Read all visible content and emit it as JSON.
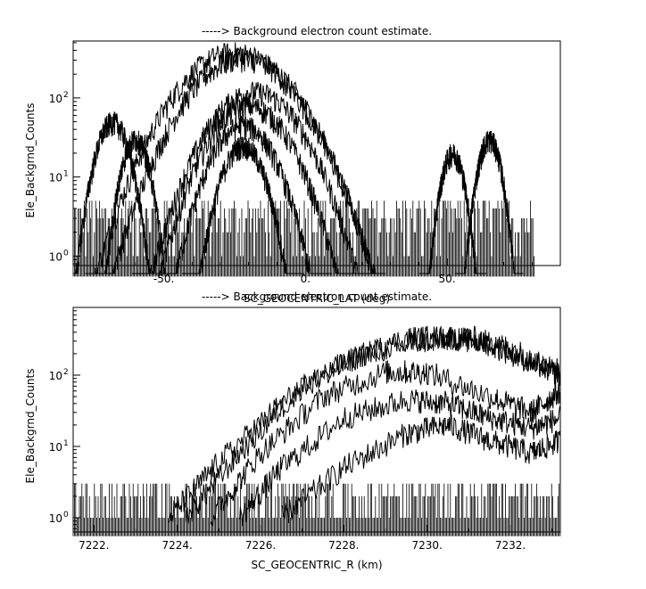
{
  "chart_data": [
    {
      "type": "line",
      "title": "-----> Background electron count estimate.",
      "xlabel": "SC_GEOCENTRIC_LAT (deg)",
      "ylabel": "Ele_Backgrnd_Counts",
      "xlim": [
        -82,
        90
      ],
      "ylim_log10": [
        -0.12,
        2.72
      ],
      "x_scale": "linear",
      "y_scale": "log",
      "x_tick_labels": [
        {
          "value": -50,
          "label": "-50."
        },
        {
          "value": 0,
          "label": "0."
        },
        {
          "value": 50,
          "label": "50."
        }
      ],
      "x_minor_ticks": [
        -80,
        -70,
        -60,
        -40,
        -30,
        -20,
        -10,
        10,
        20,
        30,
        40,
        60,
        70,
        80
      ],
      "y_tick_labels": [
        {
          "value": 1,
          "label": "10",
          "exp": "0"
        },
        {
          "value": 10,
          "label": "10",
          "exp": "1"
        },
        {
          "value": 100,
          "label": "10",
          "exp": "2"
        }
      ],
      "noise_floor": {
        "x_min": -82,
        "x_max": 81,
        "values": [
          1,
          2,
          3,
          4,
          5
        ]
      },
      "series": [
        {
          "peak_x": -25,
          "peak_y": 380,
          "width": 22
        },
        {
          "peak_x": -22,
          "peak_y": 320,
          "width": 21
        },
        {
          "peak_x": -18,
          "peak_y": 120,
          "width": 18
        },
        {
          "peak_x": -20,
          "peak_y": 80,
          "width": 16
        },
        {
          "peak_x": -22,
          "peak_y": 45,
          "width": 13
        },
        {
          "peak_x": -22,
          "peak_y": 25,
          "width": 9
        },
        {
          "peak_x": -68,
          "peak_y": 50,
          "width": 7
        },
        {
          "peak_x": -60,
          "peak_y": 30,
          "width": 6
        },
        {
          "peak_x": 52,
          "peak_y": 20,
          "width": 5
        },
        {
          "peak_x": 65,
          "peak_y": 30,
          "width": 5
        }
      ]
    },
    {
      "type": "line",
      "title": "-----> Background electron count estimate.",
      "xlabel": "SC_GEOCENTRIC_R (km)",
      "ylabel": "Ele_Backgrnd_Counts",
      "xlim": [
        7221.5,
        7233.2
      ],
      "ylim_log10": [
        -0.2,
        2.95
      ],
      "x_scale": "linear",
      "y_scale": "log",
      "x_tick_labels": [
        {
          "value": 7222,
          "label": "7222."
        },
        {
          "value": 7224,
          "label": "7224."
        },
        {
          "value": 7226,
          "label": "7226."
        },
        {
          "value": 7228,
          "label": "7228."
        },
        {
          "value": 7230,
          "label": "7230."
        },
        {
          "value": 7232,
          "label": "7232."
        }
      ],
      "x_minor_ticks": [
        7223,
        7225,
        7227,
        7229,
        7231,
        7233
      ],
      "y_tick_labels": [
        {
          "value": 1,
          "label": "10",
          "exp": "0"
        },
        {
          "value": 10,
          "label": "10",
          "exp": "1"
        },
        {
          "value": 100,
          "label": "10",
          "exp": "2"
        }
      ],
      "noise_floor": {
        "x_min": 7221.5,
        "x_max": 7233.2,
        "values": [
          1,
          2,
          3
        ]
      },
      "series": [
        {
          "points": [
            [
              7223.8,
              1
            ],
            [
              7225,
              6
            ],
            [
              7226.5,
              40
            ],
            [
              7228,
              150
            ],
            [
              7229.5,
              330
            ],
            [
              7230.5,
              340
            ],
            [
              7231.5,
              270
            ],
            [
              7232.5,
              150
            ],
            [
              7233.2,
              100
            ]
          ]
        },
        {
          "points": [
            [
              7224.2,
              1
            ],
            [
              7225.5,
              8
            ],
            [
              7227,
              70
            ],
            [
              7228.5,
              200
            ],
            [
              7230,
              300
            ],
            [
              7231,
              340
            ],
            [
              7232,
              240
            ],
            [
              7233.2,
              110
            ]
          ]
        },
        {
          "points": [
            [
              7224.8,
              1
            ],
            [
              7226,
              8
            ],
            [
              7227.5,
              50
            ],
            [
              7229,
              110
            ],
            [
              7230,
              110
            ],
            [
              7231.5,
              50
            ],
            [
              7232.5,
              30
            ],
            [
              7233.2,
              60
            ]
          ]
        },
        {
          "points": [
            [
              7225.5,
              1
            ],
            [
              7226.5,
              5
            ],
            [
              7228,
              25
            ],
            [
              7229.5,
              45
            ],
            [
              7230.5,
              40
            ],
            [
              7231.5,
              25
            ],
            [
              7232.5,
              18
            ],
            [
              7233.2,
              25
            ]
          ]
        },
        {
          "points": [
            [
              7226.5,
              1
            ],
            [
              7228,
              5
            ],
            [
              7229.5,
              15
            ],
            [
              7230.5,
              20
            ],
            [
              7231.5,
              12
            ],
            [
              7232.5,
              8
            ],
            [
              7233.2,
              12
            ]
          ]
        }
      ]
    }
  ]
}
